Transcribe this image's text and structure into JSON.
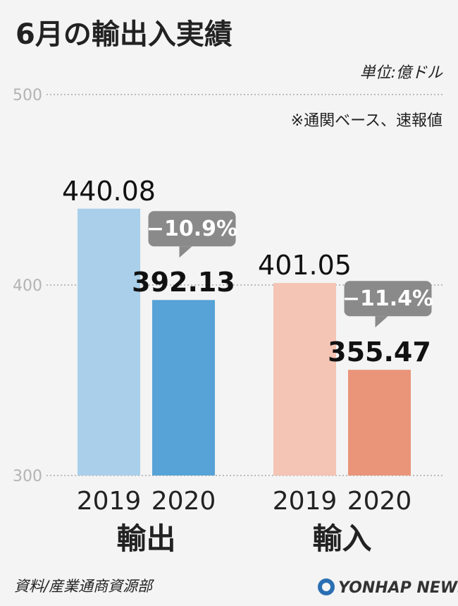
{
  "chart_data": {
    "type": "bar",
    "title": "6月の輸出入実績",
    "unit": "単位:億ドル",
    "note": "※通関ベース、速報値",
    "ylim": [
      300,
      500
    ],
    "yticks": [
      "500",
      "400",
      "300"
    ],
    "grid": true,
    "groups": [
      {
        "name": "輸出",
        "bars": [
          {
            "year": "2019",
            "value": 440.08,
            "label": "440.08",
            "color": "#a9cfea"
          },
          {
            "year": "2020",
            "value": 392.13,
            "label": "392.13",
            "color": "#57a2d6"
          }
        ],
        "change": "−10.9%"
      },
      {
        "name": "輸入",
        "bars": [
          {
            "year": "2019",
            "value": 401.05,
            "label": "401.05",
            "color": "#f4c4b4"
          },
          {
            "year": "2020",
            "value": 355.47,
            "label": "355.47",
            "color": "#ea9479"
          }
        ],
        "change": "−11.4%"
      }
    ],
    "badge_color": "#8a8a8a"
  },
  "footer": {
    "source": "資料/産業通商資源部",
    "logo": "YONHAP NEWS"
  }
}
